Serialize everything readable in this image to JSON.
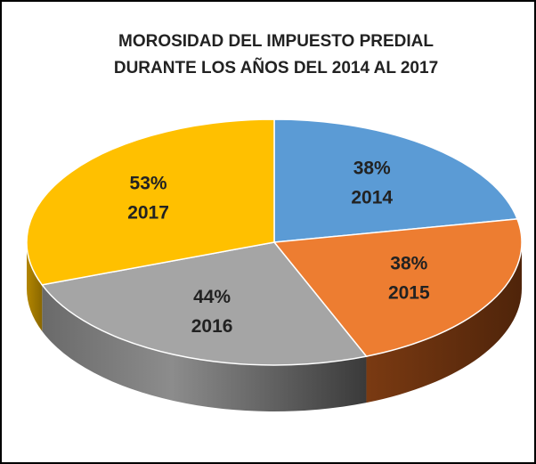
{
  "chart_data": {
    "type": "pie",
    "title": "MOROSIDAD DEL IMPUESTO PREDIAL",
    "subtitle": "DURANTE LOS AÑOS DEL 2014 AL 2017",
    "categories": [
      "2014",
      "2015",
      "2016",
      "2017"
    ],
    "values": [
      38,
      38,
      44,
      53
    ],
    "value_labels": [
      "38%",
      "38%",
      "44%",
      "53%"
    ],
    "colors": [
      "#5b9bd5",
      "#ed7d31",
      "#a5a5a5",
      "#ffc000"
    ]
  }
}
